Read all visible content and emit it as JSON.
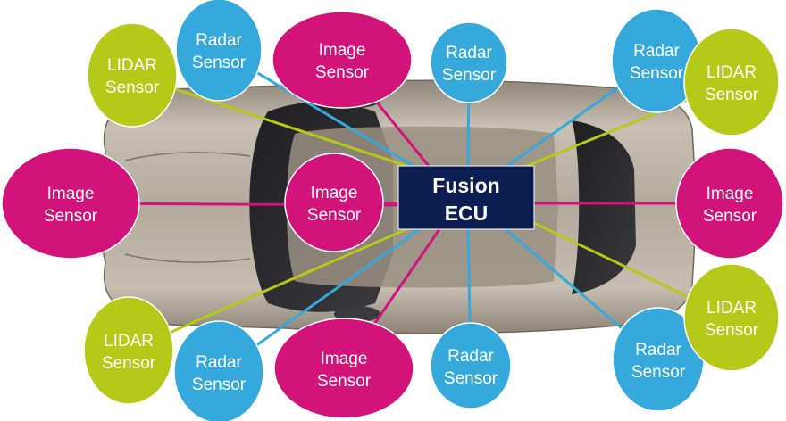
{
  "colors": {
    "lidar": "#b5c918",
    "radar": "#36a9dc",
    "image": "#d1137a",
    "ecu": "#0d1e52"
  },
  "ecu": {
    "line1": "Fusion",
    "line2": "ECU"
  },
  "sensors": [
    {
      "id": "lidar-front-left",
      "kind": "lidar",
      "line1": "LIDAR",
      "line2": "Sensor"
    },
    {
      "id": "radar-front-left",
      "kind": "radar",
      "line1": "Radar",
      "line2": "Sensor"
    },
    {
      "id": "image-front-left",
      "kind": "image",
      "line1": "Image",
      "line2": "Sensor"
    },
    {
      "id": "radar-front-center",
      "kind": "radar",
      "line1": "Radar",
      "line2": "Sensor"
    },
    {
      "id": "radar-front-right",
      "kind": "radar",
      "line1": "Radar",
      "line2": "Sensor"
    },
    {
      "id": "lidar-front-right",
      "kind": "lidar",
      "line1": "LIDAR",
      "line2": "Sensor"
    },
    {
      "id": "image-left",
      "kind": "image",
      "line1": "Image",
      "line2": "Sensor"
    },
    {
      "id": "image-center",
      "kind": "image",
      "line1": "Image",
      "line2": "Sensor"
    },
    {
      "id": "image-right",
      "kind": "image",
      "line1": "Image",
      "line2": "Sensor"
    },
    {
      "id": "lidar-rear-left",
      "kind": "lidar",
      "line1": "LIDAR",
      "line2": "Sensor"
    },
    {
      "id": "radar-rear-left",
      "kind": "radar",
      "line1": "Radar",
      "line2": "Sensor"
    },
    {
      "id": "image-rear",
      "kind": "image",
      "line1": "Image",
      "line2": "Sensor"
    },
    {
      "id": "radar-rear-center",
      "kind": "radar",
      "line1": "Radar",
      "line2": "Sensor"
    },
    {
      "id": "radar-rear-right",
      "kind": "radar",
      "line1": "Radar",
      "line2": "Sensor"
    },
    {
      "id": "lidar-rear-right",
      "kind": "lidar",
      "line1": "LIDAR",
      "line2": "Sensor"
    }
  ]
}
